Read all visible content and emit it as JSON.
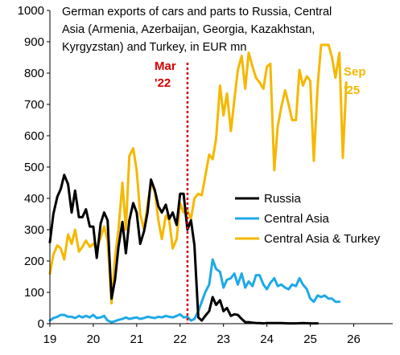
{
  "chart_data": {
    "type": "line",
    "title_lines": [
      "German exports of cars and parts to Russia, Central",
      "Asia (Armenia, Azerbaijan, Georgia, Kazakhstan,",
      "Kyrgyzstan) and Turkey, in EUR mn"
    ],
    "ylim": [
      0,
      1000
    ],
    "y_ticks": [
      0,
      100,
      200,
      300,
      400,
      500,
      600,
      700,
      800,
      900,
      1000
    ],
    "xlim": [
      2019.0,
      2026.9
    ],
    "x_ticks": [
      {
        "value": 2019,
        "label": "19"
      },
      {
        "value": 2020,
        "label": "20"
      },
      {
        "value": 2021,
        "label": "21"
      },
      {
        "value": 2022,
        "label": "22"
      },
      {
        "value": 2023,
        "label": "23"
      },
      {
        "value": 2024,
        "label": "24"
      },
      {
        "value": 2025,
        "label": "25"
      },
      {
        "value": 2026,
        "label": "26"
      }
    ],
    "grid": false,
    "legend_position": "right-middle",
    "annotations": [
      {
        "id": "mar22",
        "lines": [
          "Mar",
          "'22"
        ],
        "x": 2022.17,
        "color": "#d40000",
        "line_style": "dashed"
      },
      {
        "id": "sep25",
        "lines": [
          "Sep",
          "'25"
        ],
        "x": 2025.67,
        "color": "#f5b800"
      }
    ],
    "series": [
      {
        "name": "Russia",
        "color": "#000000",
        "points": [
          [
            2019.0,
            260
          ],
          [
            2019.08,
            350
          ],
          [
            2019.17,
            405
          ],
          [
            2019.25,
            430
          ],
          [
            2019.33,
            475
          ],
          [
            2019.42,
            445
          ],
          [
            2019.5,
            355
          ],
          [
            2019.58,
            425
          ],
          [
            2019.67,
            340
          ],
          [
            2019.75,
            340
          ],
          [
            2019.83,
            365
          ],
          [
            2019.92,
            310
          ],
          [
            2020.0,
            310
          ],
          [
            2020.08,
            210
          ],
          [
            2020.17,
            320
          ],
          [
            2020.25,
            355
          ],
          [
            2020.33,
            330
          ],
          [
            2020.42,
            80
          ],
          [
            2020.5,
            140
          ],
          [
            2020.58,
            245
          ],
          [
            2020.67,
            325
          ],
          [
            2020.75,
            225
          ],
          [
            2020.83,
            330
          ],
          [
            2020.92,
            385
          ],
          [
            2021.0,
            355
          ],
          [
            2021.08,
            255
          ],
          [
            2021.17,
            295
          ],
          [
            2021.25,
            355
          ],
          [
            2021.33,
            460
          ],
          [
            2021.42,
            425
          ],
          [
            2021.5,
            375
          ],
          [
            2021.58,
            355
          ],
          [
            2021.67,
            380
          ],
          [
            2021.75,
            335
          ],
          [
            2021.83,
            355
          ],
          [
            2021.92,
            315
          ],
          [
            2022.0,
            415
          ],
          [
            2022.08,
            415
          ],
          [
            2022.17,
            300
          ],
          [
            2022.25,
            330
          ],
          [
            2022.33,
            250
          ],
          [
            2022.42,
            20
          ],
          [
            2022.5,
            10
          ],
          [
            2022.58,
            25
          ],
          [
            2022.67,
            40
          ],
          [
            2022.75,
            85
          ],
          [
            2022.83,
            60
          ],
          [
            2022.92,
            75
          ],
          [
            2023.0,
            40
          ],
          [
            2023.08,
            50
          ],
          [
            2023.17,
            25
          ],
          [
            2023.25,
            30
          ],
          [
            2023.33,
            28
          ],
          [
            2023.42,
            15
          ],
          [
            2023.5,
            5
          ],
          [
            2023.58,
            5
          ],
          [
            2023.67,
            3
          ],
          [
            2023.75,
            2
          ],
          [
            2023.83,
            2
          ],
          [
            2023.92,
            1
          ],
          [
            2024.0,
            2
          ],
          [
            2024.17,
            2
          ],
          [
            2024.33,
            2
          ],
          [
            2024.5,
            1
          ],
          [
            2024.67,
            1
          ],
          [
            2024.83,
            2
          ],
          [
            2025.0,
            1
          ],
          [
            2025.17,
            1
          ]
        ]
      },
      {
        "name": "Central Asia",
        "color": "#1ea9e8",
        "points": [
          [
            2019.0,
            10
          ],
          [
            2019.08,
            18
          ],
          [
            2019.17,
            22
          ],
          [
            2019.25,
            28
          ],
          [
            2019.33,
            28
          ],
          [
            2019.42,
            22
          ],
          [
            2019.5,
            22
          ],
          [
            2019.58,
            18
          ],
          [
            2019.67,
            25
          ],
          [
            2019.75,
            20
          ],
          [
            2019.83,
            25
          ],
          [
            2019.92,
            20
          ],
          [
            2020.0,
            28
          ],
          [
            2020.08,
            18
          ],
          [
            2020.17,
            20
          ],
          [
            2020.25,
            25
          ],
          [
            2020.33,
            10
          ],
          [
            2020.42,
            5
          ],
          [
            2020.5,
            8
          ],
          [
            2020.58,
            12
          ],
          [
            2020.67,
            15
          ],
          [
            2020.75,
            20
          ],
          [
            2020.83,
            15
          ],
          [
            2020.92,
            18
          ],
          [
            2021.0,
            20
          ],
          [
            2021.08,
            15
          ],
          [
            2021.17,
            18
          ],
          [
            2021.25,
            22
          ],
          [
            2021.33,
            20
          ],
          [
            2021.42,
            18
          ],
          [
            2021.5,
            22
          ],
          [
            2021.58,
            20
          ],
          [
            2021.67,
            25
          ],
          [
            2021.75,
            22
          ],
          [
            2021.83,
            20
          ],
          [
            2021.92,
            25
          ],
          [
            2022.0,
            30
          ],
          [
            2022.08,
            20
          ],
          [
            2022.17,
            22
          ],
          [
            2022.25,
            10
          ],
          [
            2022.33,
            15
          ],
          [
            2022.42,
            40
          ],
          [
            2022.5,
            70
          ],
          [
            2022.58,
            100
          ],
          [
            2022.67,
            125
          ],
          [
            2022.75,
            205
          ],
          [
            2022.83,
            175
          ],
          [
            2022.92,
            165
          ],
          [
            2023.0,
            115
          ],
          [
            2023.08,
            140
          ],
          [
            2023.17,
            145
          ],
          [
            2023.25,
            160
          ],
          [
            2023.33,
            125
          ],
          [
            2023.42,
            160
          ],
          [
            2023.5,
            115
          ],
          [
            2023.58,
            135
          ],
          [
            2023.67,
            120
          ],
          [
            2023.75,
            155
          ],
          [
            2023.83,
            155
          ],
          [
            2023.92,
            125
          ],
          [
            2024.0,
            110
          ],
          [
            2024.08,
            130
          ],
          [
            2024.17,
            145
          ],
          [
            2024.25,
            120
          ],
          [
            2024.33,
            125
          ],
          [
            2024.42,
            115
          ],
          [
            2024.5,
            110
          ],
          [
            2024.58,
            125
          ],
          [
            2024.67,
            120
          ],
          [
            2024.75,
            145
          ],
          [
            2024.83,
            125
          ],
          [
            2024.92,
            110
          ],
          [
            2025.0,
            80
          ],
          [
            2025.08,
            70
          ],
          [
            2025.17,
            90
          ],
          [
            2025.25,
            85
          ],
          [
            2025.33,
            90
          ],
          [
            2025.42,
            80
          ],
          [
            2025.5,
            80
          ],
          [
            2025.58,
            70
          ],
          [
            2025.67,
            70
          ]
        ]
      },
      {
        "name": "Central Asia & Turkey",
        "color": "#f5b800",
        "points": [
          [
            2019.0,
            160
          ],
          [
            2019.08,
            220
          ],
          [
            2019.17,
            250
          ],
          [
            2019.25,
            240
          ],
          [
            2019.33,
            205
          ],
          [
            2019.42,
            285
          ],
          [
            2019.5,
            255
          ],
          [
            2019.58,
            300
          ],
          [
            2019.67,
            230
          ],
          [
            2019.75,
            245
          ],
          [
            2019.83,
            265
          ],
          [
            2019.92,
            245
          ],
          [
            2020.0,
            255
          ],
          [
            2020.08,
            240
          ],
          [
            2020.17,
            275
          ],
          [
            2020.25,
            310
          ],
          [
            2020.33,
            265
          ],
          [
            2020.42,
            65
          ],
          [
            2020.5,
            210
          ],
          [
            2020.58,
            300
          ],
          [
            2020.67,
            450
          ],
          [
            2020.75,
            300
          ],
          [
            2020.83,
            535
          ],
          [
            2020.92,
            560
          ],
          [
            2021.0,
            490
          ],
          [
            2021.08,
            350
          ],
          [
            2021.17,
            300
          ],
          [
            2021.25,
            380
          ],
          [
            2021.33,
            450
          ],
          [
            2021.42,
            420
          ],
          [
            2021.5,
            330
          ],
          [
            2021.58,
            270
          ],
          [
            2021.67,
            345
          ],
          [
            2021.75,
            330
          ],
          [
            2021.83,
            240
          ],
          [
            2021.92,
            270
          ],
          [
            2022.0,
            385
          ],
          [
            2022.08,
            355
          ],
          [
            2022.17,
            360
          ],
          [
            2022.25,
            335
          ],
          [
            2022.33,
            400
          ],
          [
            2022.42,
            415
          ],
          [
            2022.5,
            410
          ],
          [
            2022.58,
            470
          ],
          [
            2022.67,
            540
          ],
          [
            2022.75,
            525
          ],
          [
            2022.83,
            590
          ],
          [
            2022.92,
            760
          ],
          [
            2023.0,
            665
          ],
          [
            2023.08,
            735
          ],
          [
            2023.17,
            615
          ],
          [
            2023.25,
            715
          ],
          [
            2023.33,
            810
          ],
          [
            2023.42,
            855
          ],
          [
            2023.5,
            750
          ],
          [
            2023.58,
            865
          ],
          [
            2023.67,
            820
          ],
          [
            2023.75,
            785
          ],
          [
            2023.83,
            770
          ],
          [
            2023.92,
            750
          ],
          [
            2024.0,
            820
          ],
          [
            2024.08,
            830
          ],
          [
            2024.17,
            490
          ],
          [
            2024.25,
            630
          ],
          [
            2024.33,
            690
          ],
          [
            2024.42,
            745
          ],
          [
            2024.5,
            700
          ],
          [
            2024.58,
            650
          ],
          [
            2024.67,
            650
          ],
          [
            2024.75,
            810
          ],
          [
            2024.83,
            760
          ],
          [
            2024.92,
            790
          ],
          [
            2025.0,
            775
          ],
          [
            2025.08,
            520
          ],
          [
            2025.17,
            760
          ],
          [
            2025.25,
            890
          ],
          [
            2025.33,
            890
          ],
          [
            2025.42,
            890
          ],
          [
            2025.5,
            850
          ],
          [
            2025.58,
            785
          ],
          [
            2025.67,
            865
          ],
          [
            2025.75,
            530
          ],
          [
            2025.83,
            770
          ]
        ]
      }
    ]
  }
}
